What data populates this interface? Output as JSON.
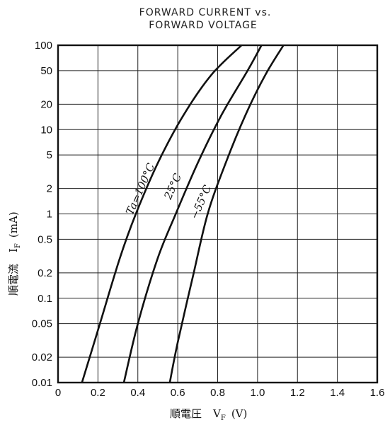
{
  "chart_data": {
    "type": "line",
    "title_line1": "FORWARD CURRENT vs.",
    "title_line2": "FORWARD VOLTAGE",
    "xlabel": "順電圧",
    "xlabel_symbol": "V",
    "xlabel_sub": "F",
    "xlabel_unit": "(V)",
    "ylabel": "順電流",
    "ylabel_symbol": "I",
    "ylabel_sub": "F",
    "ylabel_unit": "(mA)",
    "xlim": [
      0,
      1.6
    ],
    "ylim": [
      0.01,
      100
    ],
    "yscale": "log",
    "grid": true,
    "x_ticks": [
      "0",
      "0.2",
      "0.4",
      "0.6",
      "0.8",
      "1.0",
      "1.2",
      "1.4",
      "1.6"
    ],
    "y_ticks": [
      "0.01",
      "0.02",
      "0.05",
      "0.1",
      "0.2",
      "0.5",
      "1",
      "2",
      "5",
      "10",
      "20",
      "50",
      "100"
    ],
    "series": [
      {
        "name": "Ta=100°C",
        "x": [
          0.12,
          0.21,
          0.31,
          0.39,
          0.5,
          0.63,
          0.77,
          0.92
        ],
        "y": [
          0.01,
          0.05,
          0.3,
          1,
          4,
          15,
          45,
          100
        ]
      },
      {
        "name": "25°C",
        "x": [
          0.33,
          0.4,
          0.5,
          0.59,
          0.7,
          0.82,
          0.95,
          1.02
        ],
        "y": [
          0.01,
          0.05,
          0.3,
          1,
          4,
          15,
          50,
          100
        ]
      },
      {
        "name": "−55°C",
        "x": [
          0.56,
          0.6,
          0.68,
          0.75,
          0.84,
          0.94,
          1.04,
          1.13
        ],
        "y": [
          0.01,
          0.03,
          0.2,
          1,
          4,
          15,
          45,
          100
        ]
      }
    ]
  }
}
